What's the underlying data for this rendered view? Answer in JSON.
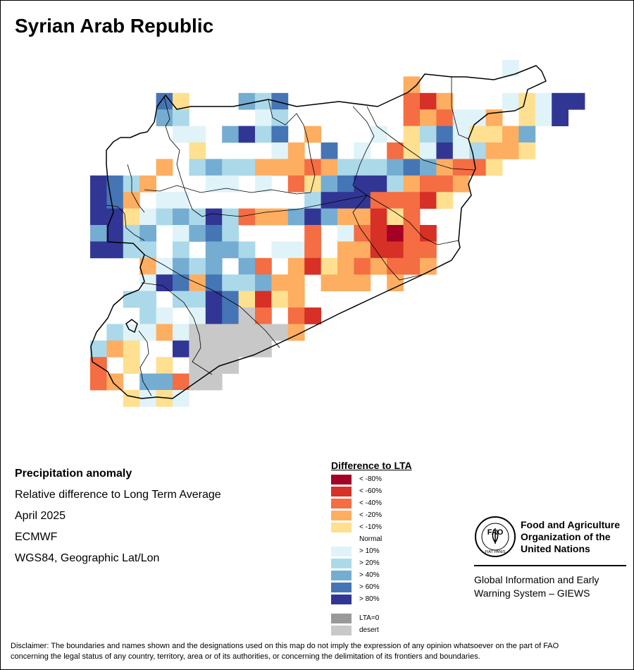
{
  "map": {
    "title": "Syrian Arab Republic",
    "colors": {
      "lt80": "#a50026",
      "lt60": "#d73027",
      "lt40": "#f46d43",
      "lt20": "#fdae61",
      "lt10": "#fee090",
      "normal": "#ffffff",
      "gt10": "#e0f3f8",
      "gt20": "#abd9e9",
      "gt40": "#74add1",
      "gt60": "#4575b4",
      "gt80": "#313695",
      "lta0": "#999999",
      "desert": "#c8c8c8"
    },
    "grid_rows": [
      {
        "row": 0,
        "start": 25,
        "cells": [
          "gt10"
        ]
      },
      {
        "row": 1,
        "start": 19,
        "cells": [
          "lt20"
        ]
      },
      {
        "row": 2,
        "start": 4,
        "cells": [
          "gt60",
          "lt10",
          "normal",
          "normal",
          "normal",
          "gt40",
          "gt20",
          "gt60",
          "normal",
          "normal",
          "normal",
          "normal",
          "normal",
          "normal",
          "normal",
          "lt40",
          "lt60",
          "lt20",
          "normal",
          "normal",
          "normal",
          "gt10",
          "lt10",
          "gt10",
          "gt80",
          "gt80"
        ]
      },
      {
        "row": 3,
        "start": 4,
        "cells": [
          "gt40",
          "gt20",
          "normal",
          "normal",
          "normal",
          "normal",
          "gt10",
          "gt20",
          "normal",
          "normal",
          "normal",
          "normal",
          "normal",
          "normal",
          "normal",
          "lt40",
          "lt20",
          "lt40",
          "gt10",
          "gt10",
          "lt20",
          "normal",
          "lt10",
          "gt10",
          "gt80",
          "normal"
        ]
      },
      {
        "row": 4,
        "start": 4,
        "cells": [
          "normal",
          "gt10",
          "gt10",
          "normal",
          "gt40",
          "gt80",
          "gt20",
          "gt60",
          "normal",
          "lt20",
          "normal",
          "normal",
          "normal",
          "gt10",
          "normal",
          "lt10",
          "gt20",
          "gt60",
          "gt10",
          "lt10",
          "lt10",
          "lt20",
          "gt40",
          "normal",
          "normal",
          "normal"
        ]
      },
      {
        "row": 5,
        "start": 4,
        "cells": [
          "normal",
          "normal",
          "lt10",
          "normal",
          "normal",
          "normal",
          "normal",
          "gt10",
          "lt20",
          "normal",
          "gt60",
          "normal",
          "gt10",
          "normal",
          "lt40",
          "lt10",
          "gt10",
          "gt80",
          "gt10",
          "gt20",
          "lt20",
          "lt20",
          "lt10",
          "normal",
          "normal",
          "normal"
        ]
      },
      {
        "row": 6,
        "start": 2,
        "cells": [
          "normal",
          "normal",
          "lt20",
          "normal",
          "gt20",
          "gt40",
          "gt20",
          "gt20",
          "lt20",
          "lt20",
          "lt20",
          "lt40",
          "lt20",
          "gt20",
          "gt20",
          "gt20",
          "gt40",
          "gt60",
          "gt40",
          "lt20",
          "lt40",
          "lt40",
          "lt10",
          "normal"
        ]
      },
      {
        "row": 7,
        "start": 0,
        "cells": [
          "gt80",
          "gt60",
          "gt20",
          "lt20",
          "normal",
          "normal",
          "normal",
          "gt10",
          "gt10",
          "normal",
          "gt10",
          "normal",
          "lt40",
          "lt10",
          "gt40",
          "gt60",
          "gt80",
          "gt80",
          "gt20",
          "lt20",
          "lt40",
          "lt40",
          "lt20"
        ]
      },
      {
        "row": 8,
        "start": 0,
        "cells": [
          "gt80",
          "gt60",
          "lt20",
          "normal",
          "gt10",
          "gt10",
          "normal",
          "normal",
          "normal",
          "normal",
          "normal",
          "normal",
          "normal",
          "gt20",
          "gt80",
          "gt80",
          "gt80",
          "lt40",
          "lt40",
          "lt40",
          "lt60",
          "lt10"
        ]
      },
      {
        "row": 9,
        "start": 0,
        "cells": [
          "gt80",
          "gt80",
          "lt10",
          "gt10",
          "gt20",
          "gt40",
          "gt20",
          "gt80",
          "gt20",
          "lt40",
          "lt20",
          "lt20",
          "gt40",
          "gt80",
          "gt40",
          "lt20",
          "lt20",
          "lt60",
          "lt10",
          "lt40",
          "normal"
        ]
      },
      {
        "row": 10,
        "start": 0,
        "cells": [
          "gt40",
          "gt80",
          "gt20",
          "gt40",
          "normal",
          "gt10",
          "gt40",
          "gt60",
          "gt20",
          "normal",
          "normal",
          "normal",
          "normal",
          "lt40",
          "normal",
          "gt10",
          "lt40",
          "lt60",
          "lt80",
          "lt40",
          "lt60"
        ]
      },
      {
        "row": 11,
        "start": 0,
        "cells": [
          "gt80",
          "gt80",
          "gt20",
          "gt20",
          "normal",
          "gt20",
          "normal",
          "gt40",
          "gt40",
          "gt20",
          "normal",
          "gt10",
          "gt10",
          "lt40",
          "normal",
          "lt20",
          "lt20",
          "lt60",
          "lt60",
          "lt40",
          "lt40"
        ]
      },
      {
        "row": 12,
        "start": 3,
        "cells": [
          "lt20",
          "gt10",
          "gt40",
          "gt20",
          "gt40",
          "normal",
          "gt40",
          "lt40",
          "normal",
          "lt20",
          "lt60",
          "lt10",
          "lt20",
          "lt40",
          "lt20",
          "lt40",
          "lt40",
          "lt20",
          "normal"
        ]
      },
      {
        "row": 13,
        "start": 3,
        "cells": [
          "gt10",
          "gt80",
          "gt60",
          "lt20",
          "gt60",
          "gt20",
          "gt20",
          "gt40",
          "lt20",
          "lt20",
          "normal",
          "lt20",
          "lt20",
          "lt20",
          "normal",
          "lt20"
        ]
      },
      {
        "row": 14,
        "start": 2,
        "cells": [
          "gt20",
          "gt20",
          "normal",
          "gt20",
          "gt20",
          "gt80",
          "gt60",
          "lt10",
          "lt60",
          "lt10",
          "lt20",
          "normal",
          "normal",
          "normal",
          "normal"
        ]
      },
      {
        "row": 15,
        "start": 2,
        "cells": [
          "normal",
          "gt20",
          "gt10",
          "normal",
          "gt10",
          "gt80",
          "gt60",
          "desert",
          "lt40",
          "normal",
          "lt40",
          "lt60",
          "normal"
        ]
      },
      {
        "row": 16,
        "start": 1,
        "cells": [
          "gt20",
          "gt10",
          "gt10",
          "lt20",
          "gt10",
          "desert",
          "desert",
          "desert",
          "desert",
          "desert",
          "desert",
          "lt20"
        ]
      },
      {
        "row": 17,
        "start": 0,
        "cells": [
          "gt20",
          "lt20",
          "lt10",
          "normal",
          "normal",
          "gt80",
          "desert",
          "desert",
          "desert",
          "desert",
          "desert"
        ]
      },
      {
        "row": 18,
        "start": 0,
        "cells": [
          "lt40",
          "normal",
          "lt10",
          "normal",
          "lt10",
          "normal",
          "desert",
          "desert",
          "desert"
        ]
      },
      {
        "row": 19,
        "start": 0,
        "cells": [
          "lt40",
          "lt20",
          "normal",
          "gt40",
          "gt40",
          "lt40",
          "desert",
          "desert"
        ]
      },
      {
        "row": 20,
        "start": 2,
        "cells": [
          "lt10",
          "gt10",
          "lt10",
          "gt10"
        ]
      }
    ]
  },
  "info": {
    "heading": "Precipitation anomaly",
    "subtitle": "Relative difference to Long Term Average",
    "period": "April 2025",
    "source": "ECMWF",
    "projection": "WGS84, Geographic Lat/Lon"
  },
  "legend": {
    "title": "Difference to LTA",
    "items": [
      {
        "label": "< -80%",
        "color": "#a50026"
      },
      {
        "label": "< -60%",
        "color": "#d73027"
      },
      {
        "label": "< -40%",
        "color": "#f46d43"
      },
      {
        "label": "< -20%",
        "color": "#fdae61"
      },
      {
        "label": "< -10%",
        "color": "#fee090"
      },
      {
        "label": "Normal",
        "color": "#ffffff"
      },
      {
        "label": "> 10%",
        "color": "#e0f3f8"
      },
      {
        "label": "> 20%",
        "color": "#abd9e9"
      },
      {
        "label": "> 40%",
        "color": "#74add1"
      },
      {
        "label": "> 60%",
        "color": "#4575b4"
      },
      {
        "label": "> 80%",
        "color": "#313695"
      },
      {
        "label": "LTA=0",
        "color": "#999999"
      },
      {
        "label": "desert",
        "color": "#c8c8c8"
      }
    ]
  },
  "fao": {
    "name_line1": "Food and Agriculture",
    "name_line2": "Organization of the",
    "name_line3": "United Nations",
    "emblem_text": "FAO",
    "emblem_motto": "FIAT PANIS",
    "system_line1": "Global Information and Early",
    "system_line2": "Warning System – GIEWS"
  },
  "disclaimer": {
    "line1": "Disclaimer: The boundaries and names shown and the designations used on this map do not imply the expression of any opinion whatsoever on the part of FAO",
    "line2": "concerning the legal status of any country, territory, area or of its authorities, or concerning the delimitation of its frontiers and boundaries."
  }
}
